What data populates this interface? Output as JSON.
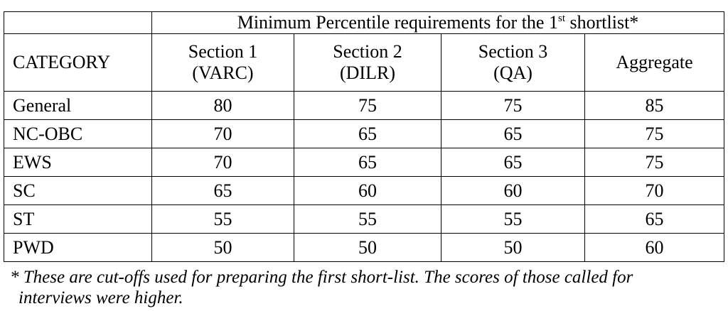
{
  "table": {
    "title": {
      "text": "Minimum Percentile requirements for the 1",
      "superscript": "st",
      "after": " shortlist*"
    },
    "corner": "CATEGORY",
    "columns": [
      [
        "Section 1",
        "(VARC)"
      ],
      [
        "Section 2",
        "(DILR)"
      ],
      [
        "Section 3",
        "(QA)"
      ],
      [
        "Aggregate"
      ]
    ],
    "rows": [
      [
        "General",
        80,
        75,
        75,
        85
      ],
      [
        "NC-OBC",
        70,
        65,
        65,
        75
      ],
      [
        "EWS",
        70,
        65,
        65,
        75
      ],
      [
        "SC",
        65,
        60,
        60,
        70
      ],
      [
        "ST",
        55,
        55,
        55,
        65
      ],
      [
        "PWD",
        50,
        50,
        50,
        60
      ]
    ]
  },
  "footnote": [
    "* These are cut-offs used for preparing the first short-list. The scores of those called for",
    "interviews were higher."
  ]
}
